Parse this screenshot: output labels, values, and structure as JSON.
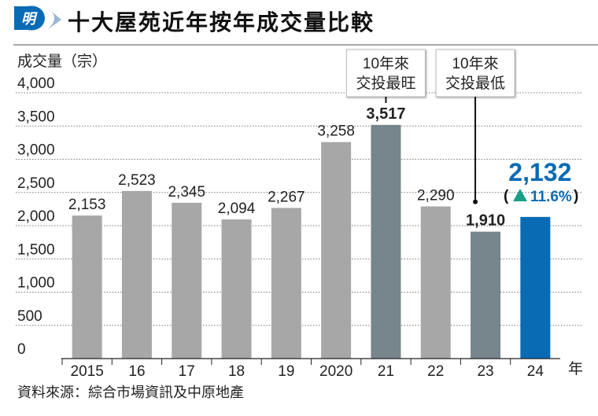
{
  "logo_text": "明",
  "chart_data": {
    "type": "bar",
    "title": "十大屋苑近年按年成交量比較",
    "ylabel": "成交量（宗）",
    "xlabel": "年",
    "ylim": [
      0,
      4000
    ],
    "yticks": [
      0,
      500,
      1000,
      1500,
      2000,
      2500,
      3000,
      3500,
      4000
    ],
    "ytick_labels": [
      "0",
      "500",
      "1,000",
      "1,500",
      "2,000",
      "2,500",
      "3,000",
      "3,500",
      "4,000"
    ],
    "categories": [
      "2015",
      "16",
      "17",
      "18",
      "19",
      "2020",
      "21",
      "22",
      "23",
      "24"
    ],
    "values": [
      2153,
      2523,
      2345,
      2094,
      2267,
      3258,
      3517,
      2290,
      1910,
      2132
    ],
    "value_labels": [
      "2,153",
      "2,523",
      "2,345",
      "2,094",
      "2,267",
      "3,258",
      "3,517",
      "2,290",
      "1,910",
      "2,132"
    ],
    "bar_colors": [
      "#a7a7a7",
      "#a7a7a7",
      "#a7a7a7",
      "#a7a7a7",
      "#a7a7a7",
      "#a7a7a7",
      "#77858c",
      "#a7a7a7",
      "#77858c",
      "#0a6bb5"
    ],
    "grid": true,
    "annotations": [
      {
        "category": "21",
        "lines": [
          "10年來",
          "交投最旺"
        ]
      },
      {
        "category": "23",
        "lines": [
          "10年來",
          "交投最低"
        ]
      }
    ],
    "change_label": "11.6%",
    "source": "資料來源：綜合市場資訊及中原地產"
  },
  "colors": {
    "accent": "#0a6bb5",
    "up": "#1a9e87"
  }
}
